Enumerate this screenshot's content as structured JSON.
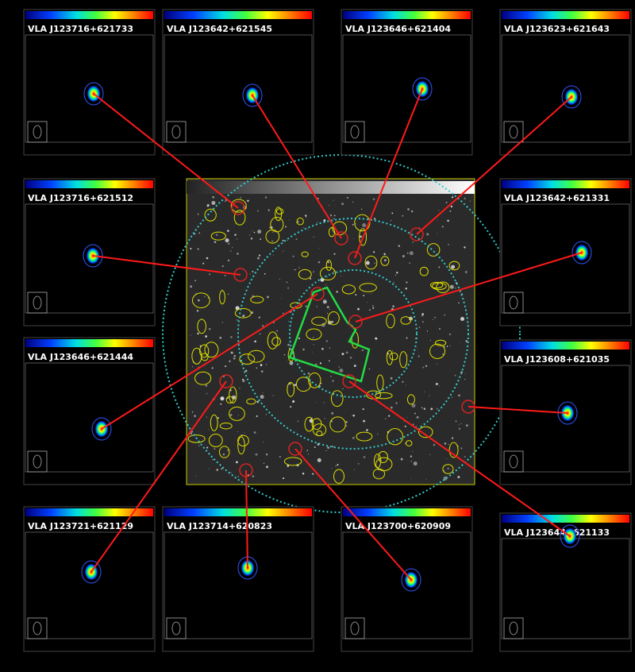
{
  "panels": [
    {
      "label": "VLA J123716+621733"
    },
    {
      "label": "VLA J123642+621545"
    },
    {
      "label": "VLA J123646+621404"
    },
    {
      "label": "VLA J123623+621643"
    },
    {
      "label": "VLA J123716+621512"
    },
    {
      "label": "VLA J123642+621331"
    },
    {
      "label": "VLA J123646+621444"
    },
    {
      "label": "VLA J123608+621035"
    },
    {
      "label": "VLA J123721+621129"
    },
    {
      "label": "VLA J123714+620823"
    },
    {
      "label": "VLA J123700+620909"
    },
    {
      "label": "VLA J123644+621133"
    }
  ]
}
